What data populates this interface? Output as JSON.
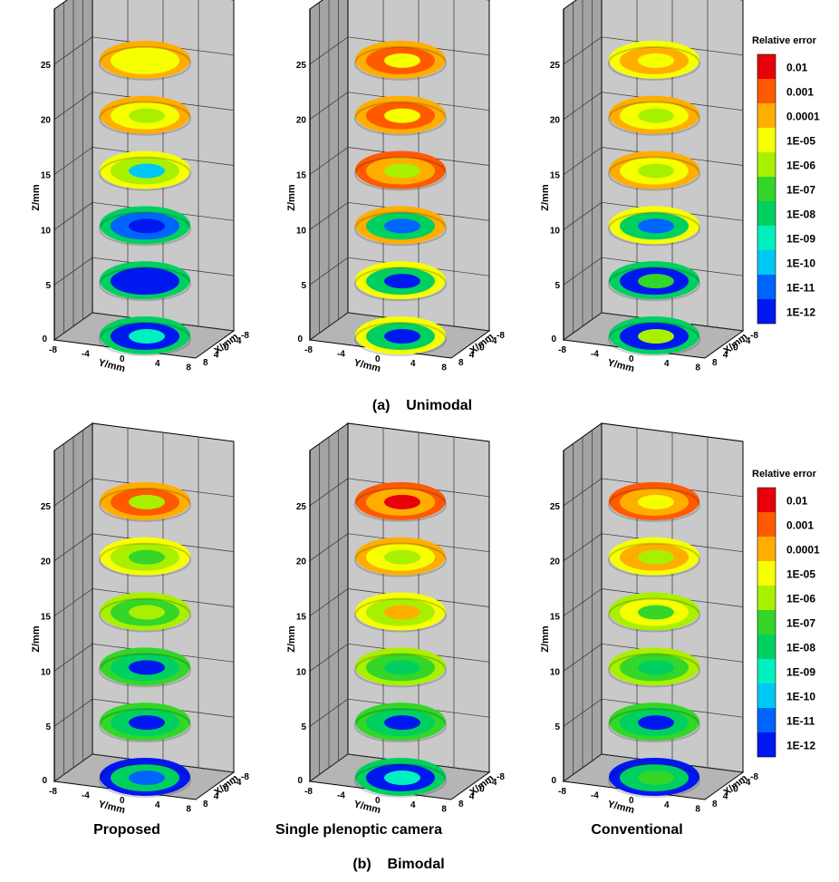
{
  "figure": {
    "caption_a": "(a)    Unimodal",
    "caption_b": "(b)    Bimodal",
    "column_labels": [
      "Proposed",
      "Single plenoptic camera",
      "Conventional"
    ]
  },
  "colorbar": {
    "title": "Relative error",
    "levels": [
      "0.01",
      "0.001",
      "0.0001",
      "1E-05",
      "1E-06",
      "1E-07",
      "1E-08",
      "1E-09",
      "1E-10",
      "1E-11",
      "1E-12"
    ],
    "colors": [
      "#e8000b",
      "#ff5a00",
      "#ffae00",
      "#f6ff00",
      "#a9f000",
      "#33d629",
      "#00d060",
      "#00f0c0",
      "#00c8f4",
      "#0064ff",
      "#0018f0"
    ]
  },
  "axes": {
    "zlabel": "Z/mm",
    "ylabel": "Y/mm",
    "xlabel": "X/mm",
    "z_ticks": [
      "25",
      "20",
      "15",
      "10",
      "5",
      "0"
    ],
    "y_ticks": [
      "-8",
      "-4",
      "0",
      "4",
      "8"
    ],
    "x_ticks": [
      "-8",
      "-4",
      "0",
      "4",
      "8"
    ]
  },
  "chart_data": [
    {
      "type": "heatmap",
      "title": "",
      "group": "Unimodal",
      "method": "Proposed",
      "z_slices": [
        25,
        20,
        15,
        10,
        5,
        0
      ],
      "slice_colors": [
        [
          "#ffae00",
          "#f6ff00",
          "#f6ff00"
        ],
        [
          "#ffae00",
          "#f6ff00",
          "#a9f000"
        ],
        [
          "#f6ff00",
          "#a9f000",
          "#00c8f4"
        ],
        [
          "#00d060",
          "#0064ff",
          "#0018f0"
        ],
        [
          "#00d060",
          "#0018f0",
          "#0018f0"
        ],
        [
          "#00d060",
          "#0018f0",
          "#00f0c0"
        ]
      ]
    },
    {
      "type": "heatmap",
      "title": "",
      "group": "Unimodal",
      "method": "Single plenoptic camera",
      "z_slices": [
        25,
        20,
        15,
        10,
        5,
        0
      ],
      "slice_colors": [
        [
          "#ffae00",
          "#ff5a00",
          "#f6ff00"
        ],
        [
          "#ffae00",
          "#ff5a00",
          "#f6ff00"
        ],
        [
          "#ff5a00",
          "#ffae00",
          "#a9f000"
        ],
        [
          "#ffae00",
          "#00d060",
          "#0064ff"
        ],
        [
          "#f6ff00",
          "#00d060",
          "#0018f0"
        ],
        [
          "#f6ff00",
          "#00d060",
          "#0018f0"
        ]
      ]
    },
    {
      "type": "heatmap",
      "title": "",
      "group": "Unimodal",
      "method": "Conventional",
      "z_slices": [
        25,
        20,
        15,
        10,
        5,
        0
      ],
      "slice_colors": [
        [
          "#f6ff00",
          "#ffae00",
          "#f6ff00"
        ],
        [
          "#ffae00",
          "#f6ff00",
          "#a9f000"
        ],
        [
          "#ffae00",
          "#f6ff00",
          "#a9f000"
        ],
        [
          "#f6ff00",
          "#00d060",
          "#0064ff"
        ],
        [
          "#00d060",
          "#0018f0",
          "#33d629"
        ],
        [
          "#00d060",
          "#0018f0",
          "#a9f000"
        ]
      ]
    },
    {
      "type": "heatmap",
      "title": "",
      "group": "Bimodal",
      "method": "Proposed",
      "z_slices": [
        25,
        20,
        15,
        10,
        5,
        0
      ],
      "slice_colors": [
        [
          "#ffae00",
          "#ff5a00",
          "#a9f000"
        ],
        [
          "#f6ff00",
          "#a9f000",
          "#33d629"
        ],
        [
          "#a9f000",
          "#33d629",
          "#a9f000"
        ],
        [
          "#33d629",
          "#00d060",
          "#0018f0"
        ],
        [
          "#33d629",
          "#00d060",
          "#0018f0"
        ],
        [
          "#0018f0",
          "#00d060",
          "#0064ff"
        ]
      ]
    },
    {
      "type": "heatmap",
      "title": "",
      "group": "Bimodal",
      "method": "Single plenoptic camera",
      "z_slices": [
        25,
        20,
        15,
        10,
        5,
        0
      ],
      "slice_colors": [
        [
          "#ff5a00",
          "#ffae00",
          "#e8000b"
        ],
        [
          "#ffae00",
          "#f6ff00",
          "#a9f000"
        ],
        [
          "#f6ff00",
          "#a9f000",
          "#ffae00"
        ],
        [
          "#a9f000",
          "#33d629",
          "#00d060"
        ],
        [
          "#33d629",
          "#00d060",
          "#0018f0"
        ],
        [
          "#00d060",
          "#0018f0",
          "#00f0c0"
        ]
      ]
    },
    {
      "type": "heatmap",
      "title": "",
      "group": "Bimodal",
      "method": "Conventional",
      "z_slices": [
        25,
        20,
        15,
        10,
        5,
        0
      ],
      "slice_colors": [
        [
          "#ff5a00",
          "#ffae00",
          "#f6ff00"
        ],
        [
          "#f6ff00",
          "#ffae00",
          "#a9f000"
        ],
        [
          "#a9f000",
          "#f6ff00",
          "#33d629"
        ],
        [
          "#a9f000",
          "#33d629",
          "#00d060"
        ],
        [
          "#33d629",
          "#00d060",
          "#0018f0"
        ],
        [
          "#0018f0",
          "#00d060",
          "#33d629"
        ]
      ]
    }
  ]
}
